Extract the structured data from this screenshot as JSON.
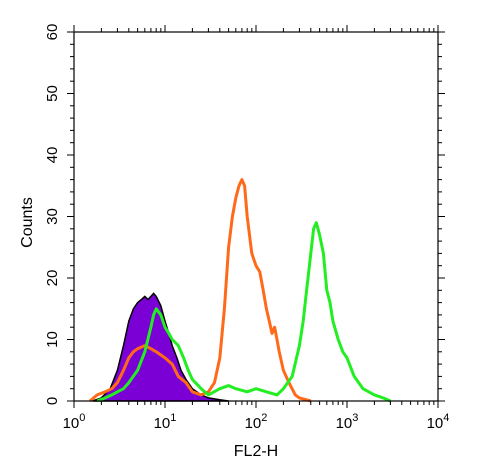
{
  "chart_data": {
    "type": "area",
    "xlabel": "FL2-H",
    "ylabel": "Counts",
    "x_scale": "log",
    "xlim": [
      1,
      10000
    ],
    "ylim": [
      0,
      60
    ],
    "x_ticks": [
      {
        "value": 1,
        "base": "10",
        "exp": "0"
      },
      {
        "value": 10,
        "base": "10",
        "exp": "1"
      },
      {
        "value": 100,
        "base": "10",
        "exp": "2"
      },
      {
        "value": 1000,
        "base": "10",
        "exp": "3"
      },
      {
        "value": 10000,
        "base": "10",
        "exp": "4"
      }
    ],
    "y_ticks": [
      "0",
      "10",
      "20",
      "30",
      "40",
      "50",
      "60"
    ],
    "grid": false,
    "legend": "none",
    "series": [
      {
        "style": "filled",
        "color": "#7a00d6",
        "outline": "#000000",
        "points": [
          [
            1.6,
            0
          ],
          [
            2,
            0.5
          ],
          [
            2.5,
            2
          ],
          [
            3,
            5
          ],
          [
            3.5,
            9
          ],
          [
            4,
            13
          ],
          [
            4.5,
            15
          ],
          [
            5,
            16
          ],
          [
            5.5,
            16.5
          ],
          [
            6,
            17
          ],
          [
            6.5,
            16.5
          ],
          [
            7,
            17
          ],
          [
            7.5,
            17.5
          ],
          [
            8,
            17
          ],
          [
            9,
            15.5
          ],
          [
            10,
            13
          ],
          [
            11,
            11
          ],
          [
            12,
            9
          ],
          [
            13.5,
            7
          ],
          [
            15,
            5
          ],
          [
            17,
            3.5
          ],
          [
            20,
            2
          ],
          [
            25,
            1
          ],
          [
            30,
            0.5
          ],
          [
            40,
            0.2
          ],
          [
            50,
            0
          ]
        ]
      },
      {
        "style": "line",
        "color": "#ff6a1a",
        "points": [
          [
            1.5,
            0
          ],
          [
            1.8,
            1
          ],
          [
            2.2,
            1.5
          ],
          [
            2.6,
            2
          ],
          [
            3,
            3
          ],
          [
            3.5,
            5
          ],
          [
            4,
            7
          ],
          [
            4.5,
            8
          ],
          [
            5,
            8.5
          ],
          [
            6,
            9
          ],
          [
            7,
            8.5
          ],
          [
            8,
            8
          ],
          [
            9,
            7.5
          ],
          [
            10,
            7
          ],
          [
            12,
            6
          ],
          [
            14,
            4
          ],
          [
            17,
            3
          ],
          [
            20,
            1.5
          ],
          [
            25,
            1
          ],
          [
            30,
            1.5
          ],
          [
            35,
            3
          ],
          [
            40,
            7
          ],
          [
            45,
            15
          ],
          [
            50,
            25
          ],
          [
            55,
            30
          ],
          [
            60,
            33
          ],
          [
            65,
            35
          ],
          [
            70,
            36
          ],
          [
            75,
            35
          ],
          [
            80,
            30
          ],
          [
            90,
            24
          ],
          [
            100,
            22
          ],
          [
            110,
            21
          ],
          [
            120,
            18
          ],
          [
            130,
            15
          ],
          [
            140,
            13
          ],
          [
            150,
            11
          ],
          [
            160,
            12
          ],
          [
            170,
            10
          ],
          [
            180,
            8
          ],
          [
            200,
            5
          ],
          [
            230,
            3
          ],
          [
            270,
            1
          ],
          [
            300,
            0.5
          ],
          [
            400,
            0
          ]
        ]
      },
      {
        "style": "line",
        "color": "#22ee22",
        "points": [
          [
            1.8,
            0
          ],
          [
            2.2,
            0.5
          ],
          [
            2.6,
            1
          ],
          [
            3,
            1.5
          ],
          [
            3.5,
            2
          ],
          [
            4,
            3
          ],
          [
            5,
            5
          ],
          [
            6,
            8
          ],
          [
            7,
            12
          ],
          [
            7.5,
            14
          ],
          [
            8,
            15
          ],
          [
            9,
            14
          ],
          [
            10,
            12
          ],
          [
            11,
            11
          ],
          [
            12,
            10
          ],
          [
            14,
            9
          ],
          [
            16,
            7
          ],
          [
            18,
            5
          ],
          [
            20,
            3.5
          ],
          [
            25,
            2
          ],
          [
            30,
            1
          ],
          [
            40,
            2
          ],
          [
            50,
            2.5
          ],
          [
            60,
            2
          ],
          [
            80,
            1.5
          ],
          [
            100,
            2
          ],
          [
            130,
            1.5
          ],
          [
            170,
            1
          ],
          [
            200,
            2
          ],
          [
            250,
            4
          ],
          [
            300,
            9
          ],
          [
            330,
            13
          ],
          [
            360,
            18
          ],
          [
            400,
            24
          ],
          [
            430,
            28
          ],
          [
            460,
            29
          ],
          [
            500,
            27
          ],
          [
            550,
            24
          ],
          [
            600,
            18
          ],
          [
            650,
            16
          ],
          [
            700,
            13
          ],
          [
            800,
            10
          ],
          [
            900,
            8
          ],
          [
            1000,
            7
          ],
          [
            1200,
            4
          ],
          [
            1500,
            2
          ],
          [
            2000,
            1
          ],
          [
            2500,
            0.5
          ],
          [
            3000,
            0
          ]
        ]
      }
    ]
  }
}
